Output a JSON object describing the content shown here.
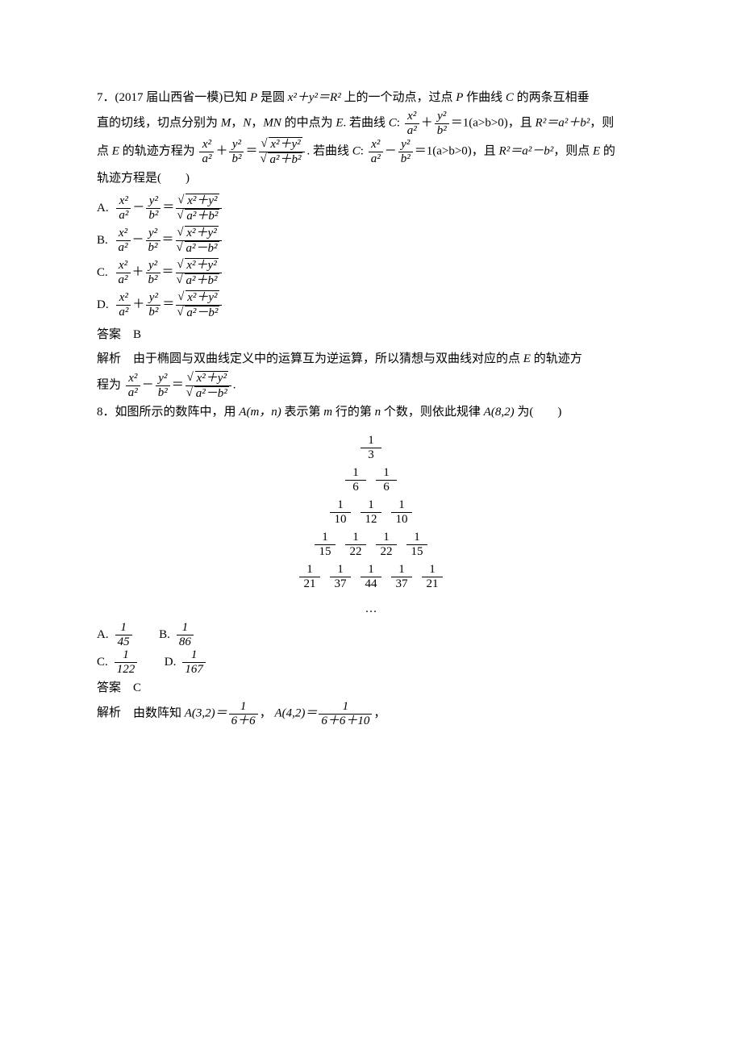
{
  "q7": {
    "number": "7．",
    "source": "(2017 届山西省一模)",
    "text1": "已知 ",
    "P": "P",
    "text2": " 是圆 ",
    "circle_eq_lhs": "x²＋y²＝R²",
    "text3": " 上的一个动点，过点 ",
    "text4": " 作曲线 ",
    "C": "C",
    "text5": " 的两条互相垂",
    "line2a": "直的切线，切点分别为 ",
    "M": "M",
    "N": "N",
    "MN": "MN",
    "line2b": "，",
    "line2c": " 的中点为 ",
    "E": "E",
    "line2d": ". 若曲线 ",
    "ellipse_tail": "＝1(a>b>0)，且 ",
    "R2_plus": "R²＝a²＋b²",
    "line2e": "，则",
    "line3a": "点 ",
    "line3b": " 的轨迹方程为",
    "line3c": ". 若曲线 ",
    "hyper_tail": "＝1(a>b>0)，且 ",
    "R2_minus": "R²＝a²－b²",
    "line3d": "，则点 ",
    "line3e": " 的",
    "line4": "轨迹方程是(　　)",
    "frac_x2_a2_num": "x²",
    "frac_x2_a2_den": "a²",
    "frac_y2_b2_num": "y²",
    "frac_y2_b2_den": "b²",
    "sqrt_xy": "x²＋y²",
    "sqrt_ab_plus": "a²＋b²",
    "sqrt_ab_minus": "a²－b²",
    "choices": {
      "A": "A.",
      "B": "B.",
      "Clabel": "C.",
      "D": "D."
    },
    "answer_label": "答案",
    "answer": "B",
    "explain_label": "解析",
    "explain_text": "由于椭圆与双曲线定义中的运算互为逆运算，所以猜想与双曲线对应的点 ",
    "explain_text2": " 的轨迹方",
    "explain_line2a": "程为",
    "period": "."
  },
  "q8": {
    "number": "8．",
    "text1": "如图所示的数阵中，用 ",
    "Amn": "A(m，n)",
    "text2": " 表示第 ",
    "m": "m",
    "text3": " 行的第 ",
    "n": "n",
    "text4": " 个数，则依此规律 ",
    "A82": "A(8,2)",
    "text5": " 为(　　)",
    "triangle": [
      [
        [
          1,
          3
        ]
      ],
      [
        [
          1,
          6
        ],
        [
          1,
          6
        ]
      ],
      [
        [
          1,
          10
        ],
        [
          1,
          12
        ],
        [
          1,
          10
        ]
      ],
      [
        [
          1,
          15
        ],
        [
          1,
          22
        ],
        [
          1,
          22
        ],
        [
          1,
          15
        ]
      ],
      [
        [
          1,
          21
        ],
        [
          1,
          37
        ],
        [
          1,
          44
        ],
        [
          1,
          37
        ],
        [
          1,
          21
        ]
      ]
    ],
    "dots": "…",
    "choices": {
      "A": {
        "label": "A.",
        "num": "1",
        "den": "45"
      },
      "B": {
        "label": "B.",
        "num": "1",
        "den": "86"
      },
      "C": {
        "label": "C.",
        "num": "1",
        "den": "122"
      },
      "D": {
        "label": "D.",
        "num": "1",
        "den": "167"
      }
    },
    "answer_label": "答案",
    "answer": "C",
    "explain_label": "解析",
    "explain_text1": "由数阵知 ",
    "A32": "A(3,2)＝",
    "f1_num": "1",
    "f1_den": "6＋6",
    "comma": "，",
    "A42": "A(4,2)＝",
    "f2_num": "1",
    "f2_den": "6＋6＋10",
    "tail": "，"
  }
}
